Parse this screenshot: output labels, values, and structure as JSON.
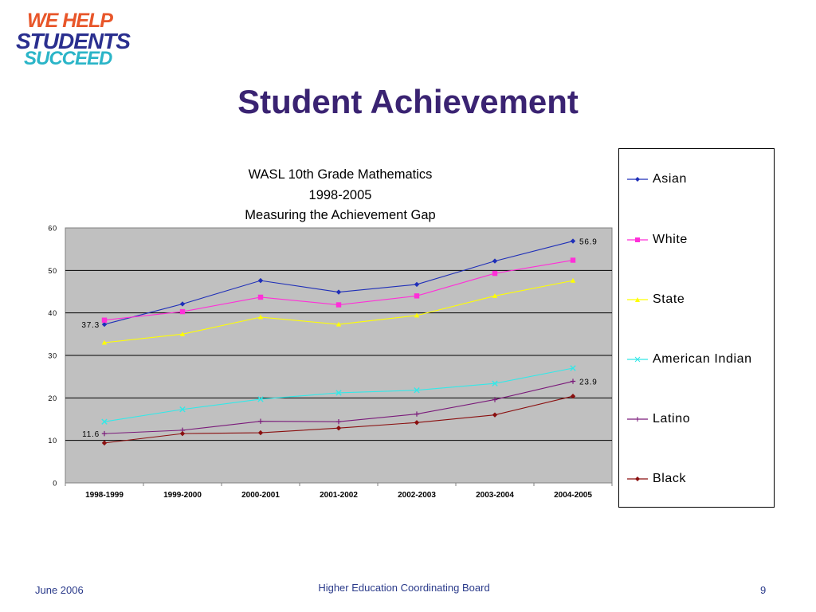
{
  "logo": {
    "line1": "WE HELP",
    "line2": "STUDENTS",
    "line3": "SUCCEED"
  },
  "slide_title": "Student Achievement",
  "footer": {
    "date": "June 2006",
    "org": "Higher Education Coordinating Board",
    "page": "9"
  },
  "chart_data": {
    "type": "line",
    "title_lines": [
      "WASL 10th Grade Mathematics",
      "1998-2005",
      "Measuring the Achievement Gap"
    ],
    "xlabel": "",
    "ylabel": "",
    "categories": [
      "1998-1999",
      "1999-2000",
      "2000-2001",
      "2001-2002",
      "2002-2003",
      "2003-2004",
      "2004-2005"
    ],
    "ylim": [
      0,
      60
    ],
    "yticks": [
      0,
      10,
      20,
      30,
      40,
      50,
      60
    ],
    "grid": true,
    "legend_position": "right",
    "plot_background": "#c0c0c0",
    "series": [
      {
        "name": "Asian",
        "color": "#1f2fb8",
        "marker": "diamond",
        "values": [
          37.3,
          42.1,
          47.6,
          44.9,
          46.7,
          52.2,
          56.9
        ]
      },
      {
        "name": "White",
        "color": "#ff2fd8",
        "marker": "square",
        "values": [
          38.3,
          40.3,
          43.7,
          41.9,
          44.0,
          49.3,
          52.4
        ]
      },
      {
        "name": "State",
        "color": "#ffff00",
        "marker": "triangle",
        "values": [
          33.0,
          35.0,
          39.0,
          37.3,
          39.4,
          44.0,
          47.6
        ]
      },
      {
        "name": "American Indian",
        "color": "#33e8e8",
        "marker": "x",
        "values": [
          14.4,
          17.3,
          19.7,
          21.2,
          21.8,
          23.4,
          27.0
        ]
      },
      {
        "name": "Latino",
        "color": "#7a1a7a",
        "marker": "plus",
        "values": [
          11.6,
          12.4,
          14.5,
          14.4,
          16.2,
          19.6,
          23.9
        ]
      },
      {
        "name": "Black",
        "color": "#8a0f0f",
        "marker": "diamond",
        "values": [
          9.4,
          11.6,
          11.8,
          12.9,
          14.2,
          16.0,
          20.4
        ]
      }
    ],
    "annotations": [
      {
        "text": "37.3",
        "series": "Asian",
        "index": 0,
        "side": "left"
      },
      {
        "text": "56.9",
        "series": "Asian",
        "index": 6,
        "side": "right"
      },
      {
        "text": "11.6",
        "series": "Latino",
        "index": 0,
        "side": "left"
      },
      {
        "text": "23.9",
        "series": "Latino",
        "index": 6,
        "side": "right"
      }
    ]
  }
}
